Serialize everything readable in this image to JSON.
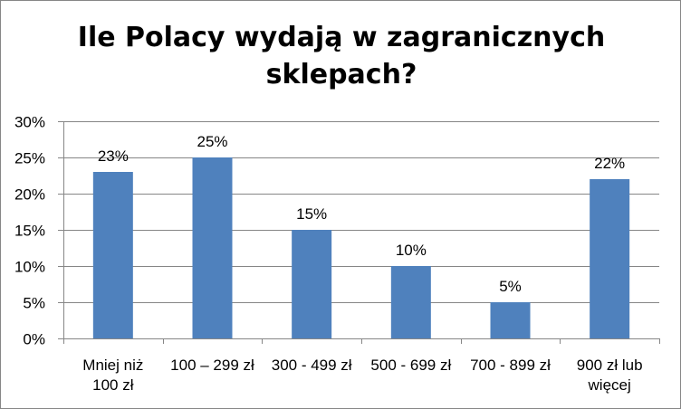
{
  "chart_data": {
    "type": "bar",
    "title": "Ile Polacy wydają w zagranicznych sklepach?",
    "categories": [
      [
        "Mniej niż",
        "100 zł"
      ],
      [
        "100 – 299 zł"
      ],
      [
        "300 - 499 zł"
      ],
      [
        "500 - 699 zł"
      ],
      [
        "700 - 899 zł"
      ],
      [
        "900 zł lub",
        "więcej"
      ]
    ],
    "values": [
      23,
      25,
      15,
      10,
      5,
      22
    ],
    "data_labels": [
      "23%",
      "25%",
      "15%",
      "10%",
      "5%",
      "22%"
    ],
    "ylim": [
      0,
      30
    ],
    "y_ticks": [
      0,
      5,
      10,
      15,
      20,
      25,
      30
    ],
    "y_tick_labels": [
      "0%",
      "5%",
      "10%",
      "15%",
      "20%",
      "25%",
      "30%"
    ],
    "grid": true,
    "legend": "none",
    "colors": {
      "bar": "#4F81BD",
      "grid": "#868686",
      "axis": "#868686",
      "border": "#868686"
    }
  }
}
